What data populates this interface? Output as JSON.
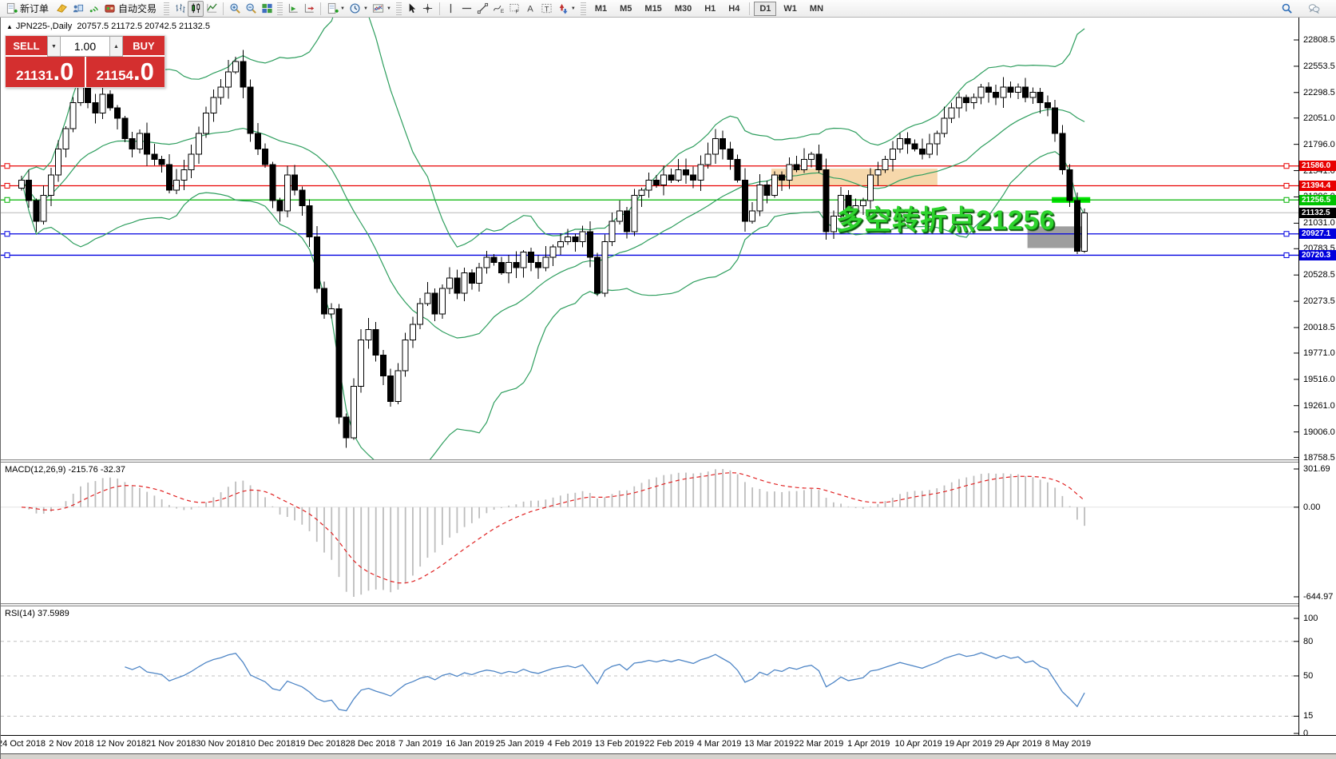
{
  "toolbar": {
    "new_order": "新订单",
    "autotrade": "自动交易",
    "timeframes": [
      "M1",
      "M5",
      "M15",
      "M30",
      "H1",
      "H4",
      "D1",
      "W1",
      "MN"
    ],
    "active_timeframe": "D1"
  },
  "chart": {
    "marker": "▲",
    "title": "JPN225-,Daily",
    "ohlc": "20757.5 21172.5 20742.5 21132.5"
  },
  "trade": {
    "sell": "SELL",
    "buy": "BUY",
    "volume": "1.00",
    "sell_int": "21131",
    "sell_frac": ".0",
    "buy_int": "21154",
    "buy_frac": ".0"
  },
  "annotation": {
    "text": "多空转折点21256",
    "color": "#2ed32e"
  },
  "macd": {
    "label": "MACD(12,26,9) -215.76 -32.37",
    "axis_labels": [
      "301.69",
      "0.00",
      "-644.97"
    ]
  },
  "rsi": {
    "label": "RSI(14) 37.5989",
    "axis_labels": [
      "100",
      "80",
      "50",
      "15",
      "0"
    ],
    "axis_values": [
      100,
      80,
      50,
      15,
      0
    ],
    "levels": [
      80,
      50,
      15
    ]
  },
  "chart_data": {
    "type": "candlestick",
    "symbol": "JPN225-",
    "timeframe": "Daily",
    "current_bar_ohlc": [
      20757.5,
      21172.5,
      20742.5,
      21132.5
    ],
    "closes": [
      21450,
      21250,
      21050,
      21300,
      21500,
      21750,
      21950,
      22200,
      22350,
      22200,
      22100,
      22280,
      22150,
      22050,
      21850,
      21750,
      21900,
      21700,
      21650,
      21600,
      21350,
      21450,
      21550,
      21700,
      21900,
      22100,
      22250,
      22350,
      22500,
      22600,
      22350,
      21900,
      21750,
      21600,
      21250,
      21150,
      21500,
      21350,
      21200,
      20900,
      20400,
      20150,
      20200,
      19150,
      18950,
      19450,
      19900,
      20000,
      19750,
      19550,
      19300,
      19600,
      19900,
      20050,
      20250,
      20350,
      20150,
      20400,
      20500,
      20350,
      20550,
      20450,
      20600,
      20700,
      20650,
      20550,
      20650,
      20600,
      20750,
      20650,
      20600,
      20700,
      20800,
      20850,
      20900,
      20850,
      20950,
      20700,
      20350,
      20850,
      21050,
      21150,
      20950,
      21300,
      21350,
      21450,
      21400,
      21500,
      21450,
      21550,
      21500,
      21450,
      21600,
      21700,
      21850,
      21750,
      21650,
      21450,
      21050,
      21150,
      21400,
      21300,
      21500,
      21450,
      21600,
      21550,
      21650,
      21700,
      21550,
      20950,
      21100,
      21300,
      21150,
      21200,
      21250,
      21500,
      21550,
      21650,
      21750,
      21850,
      21800,
      21750,
      21700,
      21800,
      21900,
      22050,
      22150,
      22250,
      22200,
      22250,
      22350,
      22300,
      22250,
      22350,
      22300,
      22350,
      22250,
      22300,
      22200,
      22150,
      21900,
      21550,
      21250,
      20760,
      21132.5
    ],
    "x_tick_labels": [
      "24 Oct 2018",
      "2 Nov 2018",
      "12 Nov 2018",
      "21 Nov 2018",
      "30 Nov 2018",
      "10 Dec 2018",
      "19 Dec 2018",
      "28 Dec 2018",
      "7 Jan 2019",
      "16 Jan 2019",
      "25 Jan 2019",
      "4 Feb 2019",
      "13 Feb 2019",
      "22 Feb 2019",
      "4 Mar 2019",
      "13 Mar 2019",
      "22 Mar 2019",
      "1 Apr 2019",
      "10 Apr 2019",
      "19 Apr 2019",
      "29 Apr 2019",
      "8 May 2019"
    ],
    "y_ticks": [
      22808.5,
      22553.5,
      22298.5,
      22051.0,
      21796.0,
      21541.0,
      21286.0,
      21031.0,
      20783.5,
      20528.5,
      20273.5,
      20018.5,
      19771.0,
      19516.0,
      19261.0,
      19006.0,
      18758.5
    ],
    "hlines": [
      {
        "price": 21586.0,
        "color": "#e80000",
        "badge": "21586.0",
        "badge_bg": "#e80000",
        "markers": true
      },
      {
        "price": 21394.4,
        "color": "#e80000",
        "badge": "21394.4",
        "badge_bg": "#e80000",
        "markers": true
      },
      {
        "price": 21256.5,
        "color": "#00b200",
        "badge": "21256.5",
        "badge_bg": "#00c300",
        "markers": true
      },
      {
        "price": 21132.5,
        "color": "#b8b8b8",
        "badge": "21132.5",
        "badge_bg": "#000000",
        "markers": false
      },
      {
        "price": 20927.1,
        "color": "#0000e0",
        "badge": "20927.1",
        "badge_bg": "#0000dd",
        "markers": true
      },
      {
        "price": 20720.3,
        "color": "#0000e0",
        "badge": "20720.3",
        "badge_bg": "#0000dd",
        "markers": true
      }
    ],
    "zones": [
      {
        "name": "supply-zone",
        "color": "#f6d8ab",
        "bar_from": 102,
        "bar_to": 124.5,
        "price_from": 21395,
        "price_to": 21560
      },
      {
        "name": "demand-zone",
        "color": "#9e9e9e",
        "bar_from": 136.7,
        "bar_to": 144.1,
        "price_from": 20790,
        "price_to": 21000
      },
      {
        "name": "pivot-bar",
        "color": "#00e400",
        "bar_from": 140,
        "bar_to": 145.2,
        "price_from": 21229,
        "price_to": 21284
      }
    ],
    "indicators": {
      "bollinger": {
        "period": 20,
        "deviation": 2,
        "color": "#2e9e5e"
      },
      "macd": {
        "fast": 12,
        "slow": 26,
        "signal": 9,
        "main_color": "#bdbdbd",
        "signal_color": "#e02020"
      },
      "rsi": {
        "period": 14,
        "color": "#4f86c6"
      }
    },
    "ylim": [
      18740,
      23025
    ]
  }
}
